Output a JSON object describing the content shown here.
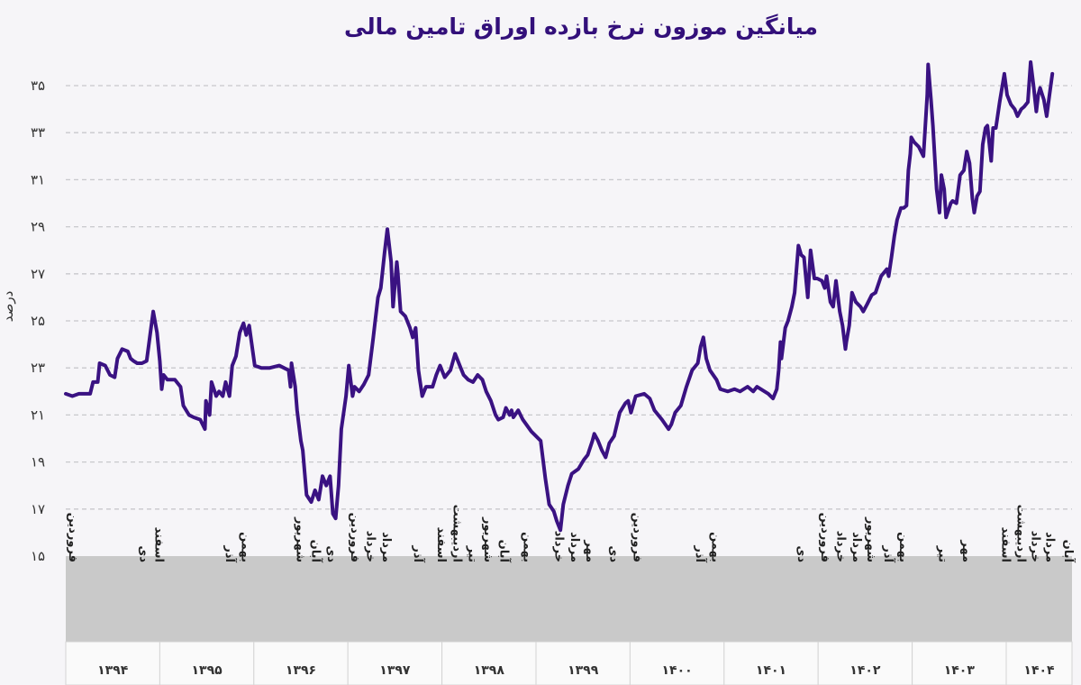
{
  "chart_data": {
    "type": "line",
    "title": "میانگین موزون نرخ بازده اوراق تامین مالی",
    "ylabel": "درصد",
    "xlabel": "",
    "ylim": [
      15,
      35
    ],
    "yticks": [
      15,
      17,
      19,
      21,
      23,
      25,
      27,
      29,
      31,
      33,
      35
    ],
    "ytick_labels": [
      "۱۵",
      "۱۷",
      "۱۹",
      "۲۱",
      "۲۳",
      "۲۵",
      "۲۷",
      "۲۹",
      "۳۱",
      "۳۳",
      "۳۵"
    ],
    "grid": "horizontal dashed",
    "line_color": "#3a1282",
    "years": [
      {
        "value": 1394,
        "label": "۱۳۹۴"
      },
      {
        "value": 1395,
        "label": "۱۳۹۵"
      },
      {
        "value": 1396,
        "label": "۱۳۹۶"
      },
      {
        "value": 1397,
        "label": "۱۳۹۷"
      },
      {
        "value": 1398,
        "label": "۱۳۹۸"
      },
      {
        "value": 1399,
        "label": "۱۳۹۹"
      },
      {
        "value": 1400,
        "label": "۱۴۰۰"
      },
      {
        "value": 1401,
        "label": "۱۴۰۱"
      },
      {
        "value": 1402,
        "label": "۱۴۰۲"
      },
      {
        "value": 1403,
        "label": "۱۴۰۳"
      },
      {
        "value": 1404,
        "label": "۱۴۰۴"
      }
    ],
    "month_names": [
      "فروردین",
      "اردیبهشت",
      "خرداد",
      "تیر",
      "مرداد",
      "شهریور",
      "مهر",
      "آبان",
      "آذر",
      "دی",
      "بهمن",
      "اسفند"
    ],
    "month_ticks": [
      {
        "year": 1394,
        "label": "فروردین"
      },
      {
        "year": 1394,
        "label": "دی"
      },
      {
        "year": 1394,
        "label": "اسفند"
      },
      {
        "year": 1395,
        "label": "آذر"
      },
      {
        "year": 1395,
        "label": "بهمن"
      },
      {
        "year": 1396,
        "label": "شهریور"
      },
      {
        "year": 1396,
        "label": "آبان"
      },
      {
        "year": 1396,
        "label": "دی"
      },
      {
        "year": 1397,
        "label": "فروردین"
      },
      {
        "year": 1397,
        "label": "خرداد"
      },
      {
        "year": 1397,
        "label": "مرداد"
      },
      {
        "year": 1397,
        "label": "آذر"
      },
      {
        "year": 1397,
        "label": "اسفند"
      },
      {
        "year": 1398,
        "label": "اردیبهشت"
      },
      {
        "year": 1398,
        "label": "تیر"
      },
      {
        "year": 1398,
        "label": "شهریور"
      },
      {
        "year": 1398,
        "label": "آبان"
      },
      {
        "year": 1398,
        "label": "بهمن"
      },
      {
        "year": 1399,
        "label": "خرداد"
      },
      {
        "year": 1399,
        "label": "مرداد"
      },
      {
        "year": 1399,
        "label": "مهر"
      },
      {
        "year": 1399,
        "label": "دی"
      },
      {
        "year": 1400,
        "label": "فروردین"
      },
      {
        "year": 1400,
        "label": "آذر"
      },
      {
        "year": 1400,
        "label": "بهمن"
      },
      {
        "year": 1401,
        "label": "دی"
      },
      {
        "year": 1402,
        "label": "فروردین"
      },
      {
        "year": 1402,
        "label": "خرداد"
      },
      {
        "year": 1402,
        "label": "مرداد"
      },
      {
        "year": 1402,
        "label": "شهریور"
      },
      {
        "year": 1402,
        "label": "آذر"
      },
      {
        "year": 1402,
        "label": "بهمن"
      },
      {
        "year": 1403,
        "label": "تیر"
      },
      {
        "year": 1403,
        "label": "مهر"
      },
      {
        "year": 1403,
        "label": "اسفند"
      },
      {
        "year": 1404,
        "label": "اردیبهشت"
      },
      {
        "year": 1404,
        "label": "خرداد"
      },
      {
        "year": 1404,
        "label": "مرداد"
      },
      {
        "year": 1404,
        "label": "آبان"
      }
    ],
    "points": [
      [
        1394.0,
        21.9
      ],
      [
        1394.07,
        21.8
      ],
      [
        1394.14,
        21.9
      ],
      [
        1394.26,
        21.9
      ],
      [
        1394.29,
        22.4
      ],
      [
        1394.34,
        22.4
      ],
      [
        1394.36,
        23.2
      ],
      [
        1394.42,
        23.1
      ],
      [
        1394.47,
        22.7
      ],
      [
        1394.52,
        22.6
      ],
      [
        1394.55,
        23.4
      ],
      [
        1394.6,
        23.8
      ],
      [
        1394.66,
        23.7
      ],
      [
        1394.69,
        23.4
      ],
      [
        1394.72,
        23.3
      ],
      [
        1394.76,
        23.2
      ],
      [
        1394.81,
        23.2
      ],
      [
        1394.86,
        23.3
      ],
      [
        1394.91,
        24.8
      ],
      [
        1394.93,
        25.4
      ],
      [
        1394.97,
        24.5
      ],
      [
        1395.0,
        23.3
      ],
      [
        1395.02,
        22.1
      ],
      [
        1395.04,
        22.7
      ],
      [
        1395.08,
        22.5
      ],
      [
        1395.16,
        22.5
      ],
      [
        1395.22,
        22.2
      ],
      [
        1395.25,
        21.4
      ],
      [
        1395.31,
        21.0
      ],
      [
        1395.36,
        20.9
      ],
      [
        1395.43,
        20.8
      ],
      [
        1395.48,
        20.4
      ],
      [
        1395.49,
        21.6
      ],
      [
        1395.53,
        21.0
      ],
      [
        1395.55,
        22.4
      ],
      [
        1395.6,
        21.8
      ],
      [
        1395.63,
        22.0
      ],
      [
        1395.67,
        21.8
      ],
      [
        1395.7,
        22.4
      ],
      [
        1395.74,
        21.8
      ],
      [
        1395.77,
        23.1
      ],
      [
        1395.81,
        23.5
      ],
      [
        1395.85,
        24.5
      ],
      [
        1395.89,
        24.9
      ],
      [
        1395.92,
        24.4
      ],
      [
        1395.95,
        24.8
      ],
      [
        1396.01,
        23.1
      ],
      [
        1396.08,
        23.0
      ],
      [
        1396.17,
        23.0
      ],
      [
        1396.27,
        23.1
      ],
      [
        1396.37,
        22.9
      ],
      [
        1396.39,
        22.2
      ],
      [
        1396.4,
        23.2
      ],
      [
        1396.44,
        22.2
      ],
      [
        1396.46,
        21.2
      ],
      [
        1396.5,
        19.9
      ],
      [
        1396.52,
        19.5
      ],
      [
        1396.56,
        17.6
      ],
      [
        1396.61,
        17.3
      ],
      [
        1396.65,
        17.8
      ],
      [
        1396.69,
        17.4
      ],
      [
        1396.73,
        18.4
      ],
      [
        1396.77,
        18.0
      ],
      [
        1396.81,
        18.4
      ],
      [
        1396.84,
        16.8
      ],
      [
        1396.87,
        16.6
      ],
      [
        1396.9,
        18.0
      ],
      [
        1396.93,
        20.4
      ],
      [
        1396.98,
        21.8
      ],
      [
        1397.01,
        23.1
      ],
      [
        1397.05,
        21.8
      ],
      [
        1397.07,
        22.2
      ],
      [
        1397.12,
        22.0
      ],
      [
        1397.17,
        22.3
      ],
      [
        1397.22,
        22.7
      ],
      [
        1397.27,
        24.3
      ],
      [
        1397.29,
        25.0
      ],
      [
        1397.32,
        26.0
      ],
      [
        1397.35,
        26.4
      ],
      [
        1397.39,
        27.9
      ],
      [
        1397.42,
        28.9
      ],
      [
        1397.46,
        27.5
      ],
      [
        1397.48,
        25.6
      ],
      [
        1397.52,
        27.5
      ],
      [
        1397.53,
        27.1
      ],
      [
        1397.56,
        25.4
      ],
      [
        1397.61,
        25.2
      ],
      [
        1397.66,
        24.7
      ],
      [
        1397.69,
        24.3
      ],
      [
        1397.72,
        24.7
      ],
      [
        1397.75,
        22.9
      ],
      [
        1397.79,
        21.8
      ],
      [
        1397.83,
        22.2
      ],
      [
        1397.9,
        22.2
      ],
      [
        1397.94,
        22.7
      ],
      [
        1397.98,
        23.1
      ],
      [
        1398.03,
        22.6
      ],
      [
        1398.09,
        22.9
      ],
      [
        1398.14,
        23.6
      ],
      [
        1398.19,
        23.1
      ],
      [
        1398.23,
        22.7
      ],
      [
        1398.28,
        22.5
      ],
      [
        1398.33,
        22.4
      ],
      [
        1398.38,
        22.7
      ],
      [
        1398.43,
        22.5
      ],
      [
        1398.47,
        22.0
      ],
      [
        1398.52,
        21.6
      ],
      [
        1398.57,
        21.0
      ],
      [
        1398.6,
        20.8
      ],
      [
        1398.65,
        20.9
      ],
      [
        1398.68,
        21.3
      ],
      [
        1398.72,
        21.0
      ],
      [
        1398.74,
        21.2
      ],
      [
        1398.76,
        20.9
      ],
      [
        1398.81,
        21.2
      ],
      [
        1398.86,
        20.8
      ],
      [
        1398.95,
        20.3
      ],
      [
        1399.05,
        19.9
      ],
      [
        1399.1,
        18.3
      ],
      [
        1399.14,
        17.2
      ],
      [
        1399.19,
        16.9
      ],
      [
        1399.22,
        16.5
      ],
      [
        1399.26,
        16.1
      ],
      [
        1399.29,
        17.2
      ],
      [
        1399.34,
        18.0
      ],
      [
        1399.38,
        18.5
      ],
      [
        1399.45,
        18.7
      ],
      [
        1399.51,
        19.1
      ],
      [
        1399.55,
        19.3
      ],
      [
        1399.6,
        19.9
      ],
      [
        1399.62,
        20.2
      ],
      [
        1399.66,
        19.9
      ],
      [
        1399.7,
        19.5
      ],
      [
        1399.74,
        19.2
      ],
      [
        1399.78,
        19.8
      ],
      [
        1399.83,
        20.1
      ],
      [
        1399.89,
        21.1
      ],
      [
        1399.95,
        21.5
      ],
      [
        1399.98,
        21.6
      ],
      [
        1400.01,
        21.1
      ],
      [
        1400.06,
        21.8
      ],
      [
        1400.15,
        21.9
      ],
      [
        1400.21,
        21.7
      ],
      [
        1400.26,
        21.2
      ],
      [
        1400.34,
        20.8
      ],
      [
        1400.41,
        20.4
      ],
      [
        1400.44,
        20.6
      ],
      [
        1400.48,
        21.1
      ],
      [
        1400.54,
        21.4
      ],
      [
        1400.6,
        22.2
      ],
      [
        1400.66,
        22.9
      ],
      [
        1400.7,
        23.1
      ],
      [
        1400.72,
        23.2
      ],
      [
        1400.75,
        23.9
      ],
      [
        1400.78,
        24.3
      ],
      [
        1400.81,
        23.4
      ],
      [
        1400.85,
        22.9
      ],
      [
        1400.92,
        22.5
      ],
      [
        1400.96,
        22.1
      ],
      [
        1401.04,
        22.0
      ],
      [
        1401.11,
        22.1
      ],
      [
        1401.17,
        22.0
      ],
      [
        1401.25,
        22.2
      ],
      [
        1401.31,
        22.0
      ],
      [
        1401.35,
        22.2
      ],
      [
        1401.39,
        22.1
      ],
      [
        1401.47,
        21.9
      ],
      [
        1401.52,
        21.7
      ],
      [
        1401.56,
        22.1
      ],
      [
        1401.58,
        22.9
      ],
      [
        1401.6,
        24.1
      ],
      [
        1401.61,
        23.4
      ],
      [
        1401.65,
        24.7
      ],
      [
        1401.68,
        25.0
      ],
      [
        1401.72,
        25.6
      ],
      [
        1401.75,
        26.2
      ],
      [
        1401.79,
        28.2
      ],
      [
        1401.82,
        27.8
      ],
      [
        1401.85,
        27.7
      ],
      [
        1401.89,
        26.0
      ],
      [
        1401.92,
        28.0
      ],
      [
        1401.96,
        26.8
      ],
      [
        1401.99,
        26.8
      ],
      [
        1402.04,
        26.7
      ],
      [
        1402.07,
        26.4
      ],
      [
        1402.09,
        26.9
      ],
      [
        1402.13,
        25.8
      ],
      [
        1402.16,
        25.6
      ],
      [
        1402.19,
        26.7
      ],
      [
        1402.23,
        25.4
      ],
      [
        1402.26,
        24.8
      ],
      [
        1402.29,
        23.8
      ],
      [
        1402.3,
        24.1
      ],
      [
        1402.33,
        24.8
      ],
      [
        1402.36,
        26.2
      ],
      [
        1402.4,
        25.8
      ],
      [
        1402.45,
        25.6
      ],
      [
        1402.48,
        25.4
      ],
      [
        1402.52,
        25.7
      ],
      [
        1402.57,
        26.1
      ],
      [
        1402.61,
        26.2
      ],
      [
        1402.67,
        26.9
      ],
      [
        1402.73,
        27.2
      ],
      [
        1402.75,
        26.9
      ],
      [
        1402.78,
        27.7
      ],
      [
        1402.81,
        28.6
      ],
      [
        1402.84,
        29.3
      ],
      [
        1402.88,
        29.8
      ],
      [
        1402.91,
        29.8
      ],
      [
        1402.94,
        29.9
      ],
      [
        1402.96,
        31.4
      ],
      [
        1402.98,
        32.1
      ],
      [
        1402.99,
        32.8
      ],
      [
        1403.02,
        32.6
      ],
      [
        1403.07,
        32.4
      ],
      [
        1403.12,
        32.0
      ],
      [
        1403.16,
        34.6
      ],
      [
        1403.17,
        35.9
      ],
      [
        1403.2,
        34.4
      ],
      [
        1403.22,
        33.3
      ],
      [
        1403.26,
        30.6
      ],
      [
        1403.29,
        29.6
      ],
      [
        1403.31,
        31.2
      ],
      [
        1403.34,
        30.6
      ],
      [
        1403.36,
        29.4
      ],
      [
        1403.41,
        30.0
      ],
      [
        1403.43,
        30.1
      ],
      [
        1403.47,
        30.0
      ],
      [
        1403.51,
        31.2
      ],
      [
        1403.55,
        31.4
      ],
      [
        1403.58,
        32.2
      ],
      [
        1403.61,
        31.7
      ],
      [
        1403.64,
        30.2
      ],
      [
        1403.66,
        29.6
      ],
      [
        1403.69,
        30.3
      ],
      [
        1403.72,
        30.5
      ],
      [
        1403.75,
        32.5
      ],
      [
        1403.78,
        33.2
      ],
      [
        1403.8,
        33.3
      ],
      [
        1403.84,
        31.8
      ],
      [
        1403.86,
        33.2
      ],
      [
        1403.89,
        33.2
      ],
      [
        1403.93,
        34.3
      ],
      [
        1403.98,
        35.5
      ],
      [
        1404.01,
        34.6
      ],
      [
        1404.05,
        34.2
      ],
      [
        1404.09,
        34.0
      ],
      [
        1404.12,
        33.7
      ],
      [
        1404.16,
        34.0
      ],
      [
        1404.19,
        34.1
      ],
      [
        1404.23,
        34.3
      ],
      [
        1404.26,
        36.0
      ],
      [
        1404.29,
        35.0
      ],
      [
        1404.32,
        33.9
      ],
      [
        1404.34,
        34.6
      ],
      [
        1404.36,
        34.9
      ],
      [
        1404.4,
        34.4
      ],
      [
        1404.43,
        33.7
      ],
      [
        1404.46,
        34.6
      ],
      [
        1404.49,
        35.5
      ]
    ]
  }
}
